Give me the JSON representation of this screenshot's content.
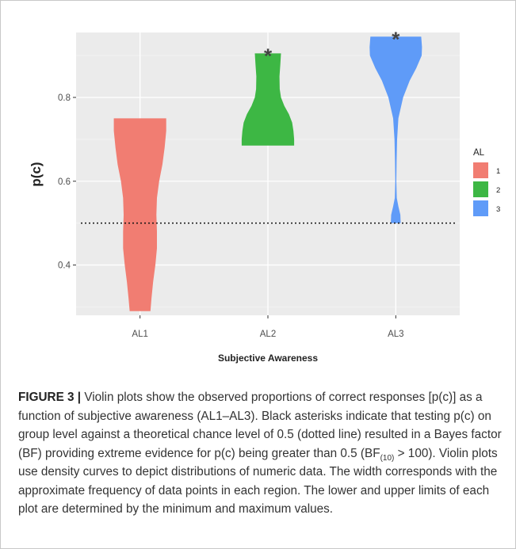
{
  "chart_data": {
    "type": "violin",
    "categories": [
      "AL1",
      "AL2",
      "AL3"
    ],
    "xlabel": "Subjective Awareness",
    "ylabel": "p(c)",
    "ylim": [
      0.28,
      0.955
    ],
    "yticks": [
      0.4,
      0.6,
      0.8
    ],
    "ytick_labels": [
      "0.4",
      "0.6",
      "0.8"
    ],
    "chance_level": 0.5,
    "grid": true,
    "legend": {
      "title": "AL",
      "placement": "right",
      "entries": [
        {
          "label": "1",
          "color": "#F17D72"
        },
        {
          "label": "2",
          "color": "#3DB744"
        },
        {
          "label": "3",
          "color": "#5F9BF8"
        }
      ]
    },
    "series": [
      {
        "category": "AL1",
        "color": "#F17D72",
        "min": 0.29,
        "max": 0.75,
        "significant": false,
        "density": [
          [
            0.29,
            0.38
          ],
          [
            0.32,
            0.42
          ],
          [
            0.36,
            0.48
          ],
          [
            0.4,
            0.56
          ],
          [
            0.44,
            0.62
          ],
          [
            0.48,
            0.62
          ],
          [
            0.52,
            0.6
          ],
          [
            0.56,
            0.62
          ],
          [
            0.6,
            0.7
          ],
          [
            0.64,
            0.82
          ],
          [
            0.68,
            0.9
          ],
          [
            0.72,
            0.96
          ],
          [
            0.75,
            0.96
          ]
        ]
      },
      {
        "category": "AL2",
        "color": "#3DB744",
        "min": 0.685,
        "max": 0.905,
        "significant": true,
        "density": [
          [
            0.685,
            2.0
          ],
          [
            0.7,
            2.0
          ],
          [
            0.72,
            1.95
          ],
          [
            0.74,
            1.85
          ],
          [
            0.76,
            1.6
          ],
          [
            0.78,
            1.25
          ],
          [
            0.8,
            1.0
          ],
          [
            0.82,
            0.9
          ],
          [
            0.85,
            0.88
          ],
          [
            0.88,
            0.95
          ],
          [
            0.905,
            1.0
          ]
        ]
      },
      {
        "category": "AL3",
        "color": "#5F9BF8",
        "min": 0.5,
        "max": 0.945,
        "significant": true,
        "density": [
          [
            0.5,
            0.3
          ],
          [
            0.52,
            0.28
          ],
          [
            0.54,
            0.16
          ],
          [
            0.56,
            0.06
          ],
          [
            0.6,
            0.03
          ],
          [
            0.65,
            0.05
          ],
          [
            0.7,
            0.08
          ],
          [
            0.75,
            0.16
          ],
          [
            0.8,
            0.45
          ],
          [
            0.84,
            0.85
          ],
          [
            0.87,
            1.25
          ],
          [
            0.9,
            1.58
          ],
          [
            0.92,
            1.6
          ],
          [
            0.945,
            1.55
          ]
        ]
      }
    ],
    "annotations": [
      {
        "text": "*",
        "category": "AL2",
        "y": 0.905
      },
      {
        "text": "*",
        "category": "AL3",
        "y": 0.945
      }
    ]
  },
  "caption": {
    "label": "FIGURE 3 |",
    "part1": "Violin plots show the observed proportions of correct responses [p(c)] as a function of subjective awareness (AL1–AL3). Black asterisks indicate that testing p(c) on group level against a theoretical chance level of 0.5 (dotted line) resulted in a Bayes factor (BF) providing extreme evidence for p(c) being greater than 0.5 (BF",
    "sub": "(10)",
    "part2": " > 100). Violin plots use density curves to depict distributions of numeric data. The width corresponds with the approximate frequency of data points in each region. The lower and upper limits of each plot are determined by the minimum and maximum values."
  }
}
